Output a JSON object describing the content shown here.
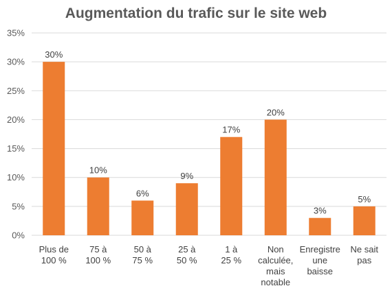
{
  "chart_data": {
    "type": "bar",
    "title": "Augmentation du trafic sur le site web",
    "categories": [
      [
        "Plus de",
        "100 %"
      ],
      [
        "75 à",
        "100 %"
      ],
      [
        "50 à",
        "75 %"
      ],
      [
        "25 à",
        "50 %"
      ],
      [
        "1 à",
        "25 %"
      ],
      [
        "Non",
        "calculée,",
        "mais",
        "notable"
      ],
      [
        "Enregistre",
        "une",
        "baisse"
      ],
      [
        "Ne sait",
        "pas"
      ]
    ],
    "values": [
      30,
      10,
      6,
      9,
      17,
      20,
      3,
      5
    ],
    "data_labels": [
      "30%",
      "10%",
      "6%",
      "9%",
      "17%",
      "20%",
      "3%",
      "5%"
    ],
    "y_ticks": [
      "0%",
      "5%",
      "10%",
      "15%",
      "20%",
      "25%",
      "30%",
      "35%"
    ],
    "ylim": [
      0,
      35
    ],
    "grid": true,
    "bar_color": "#ED7D31",
    "grid_color": "#D9D9D9"
  }
}
